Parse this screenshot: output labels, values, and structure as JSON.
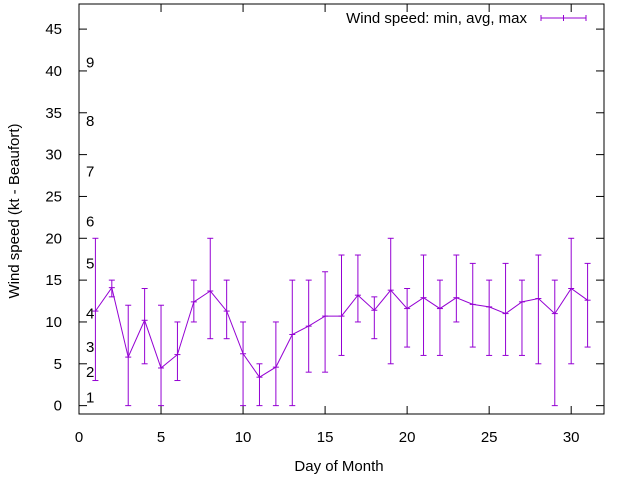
{
  "chart_data": {
    "type": "line",
    "title": "",
    "xlabel": "Day of Month",
    "ylabel": "Wind speed (kt - Beaufort)",
    "xlim": [
      0,
      32
    ],
    "ylim": [
      -1,
      48
    ],
    "xticks": [
      0,
      5,
      10,
      15,
      20,
      25,
      30
    ],
    "yticks": [
      0,
      5,
      10,
      15,
      20,
      25,
      30,
      35,
      40,
      45
    ],
    "grid": false,
    "legend_position": "top-right",
    "series_color": "#9400d3",
    "series": [
      {
        "name": "Wind speed: min, avg, max",
        "x": [
          1,
          2,
          3,
          4,
          5,
          6,
          7,
          8,
          9,
          10,
          11,
          12,
          13,
          14,
          15,
          16,
          17,
          18,
          19,
          20,
          21,
          22,
          23,
          24,
          25,
          26,
          27,
          28,
          29,
          30,
          31
        ],
        "avg": [
          11.3,
          14.1,
          5.8,
          10.2,
          4.5,
          6.1,
          12.4,
          13.7,
          11.3,
          6.2,
          3.4,
          4.6,
          8.5,
          9.5,
          10.7,
          10.7,
          13.2,
          11.4,
          13.8,
          11.6,
          12.9,
          11.6,
          12.9,
          12.1,
          11.8,
          11.0,
          12.4,
          12.8,
          11.0,
          14.0,
          12.6
        ],
        "min": [
          3,
          13,
          0,
          5,
          0,
          3,
          10,
          8,
          8,
          0,
          0,
          0,
          0,
          4,
          4,
          6,
          10,
          8,
          5,
          7,
          6,
          6,
          10,
          7,
          6,
          6,
          6,
          5,
          0,
          5,
          7
        ],
        "max": [
          20,
          15,
          12,
          14,
          12,
          10,
          15,
          20,
          15,
          10,
          5,
          10,
          15,
          15,
          16,
          18,
          18,
          13,
          20,
          14,
          18,
          15,
          18,
          17,
          15,
          17,
          15,
          18,
          15,
          20,
          17
        ]
      }
    ],
    "beaufort_annotations": [
      {
        "label": "1",
        "y": 1
      },
      {
        "label": "2",
        "y": 4
      },
      {
        "label": "3",
        "y": 7
      },
      {
        "label": "4",
        "y": 11
      },
      {
        "label": "5",
        "y": 17
      },
      {
        "label": "6",
        "y": 22
      },
      {
        "label": "7",
        "y": 28
      },
      {
        "label": "8",
        "y": 34
      },
      {
        "label": "9",
        "y": 41
      }
    ]
  }
}
